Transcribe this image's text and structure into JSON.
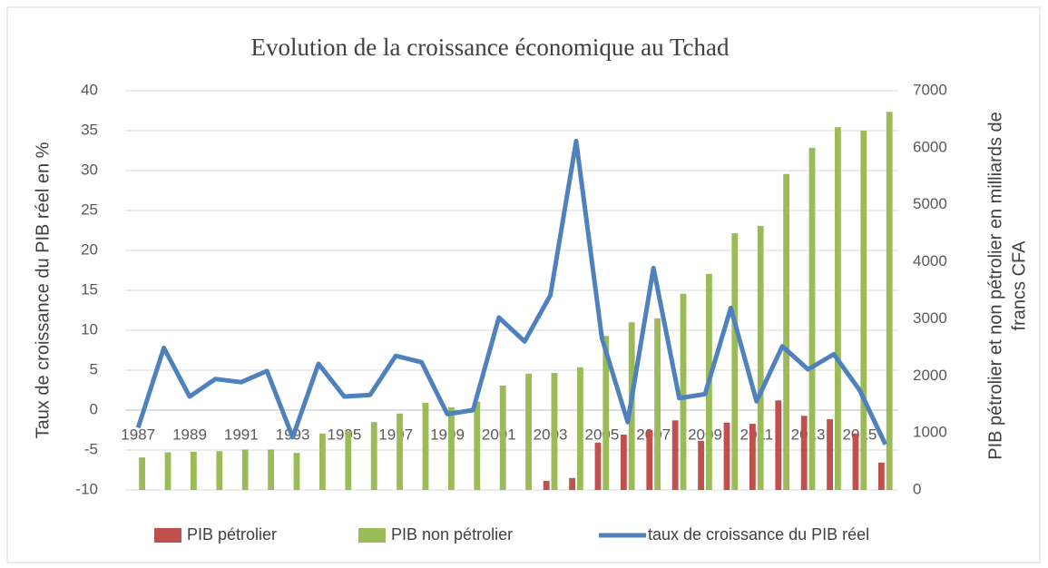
{
  "chart_data": {
    "type": "bar+line",
    "title": "Evolution de la croissance économique au Tchad",
    "ylabel": "Taux de croissance du PIB réel  en %",
    "y2label": [
      "PIB pétrolier et non pétrolier en milliards de",
      "francs CFA"
    ],
    "categories": [
      "1987",
      null,
      "1989",
      null,
      "1991",
      null,
      "1993",
      null,
      "1995",
      null,
      "1997",
      null,
      "1999",
      null,
      "2001",
      null,
      "2003",
      null,
      "2005",
      null,
      "2007",
      null,
      "2009",
      null,
      "2011",
      null,
      "2013",
      null,
      "2015",
      null
    ],
    "ylim": [
      -10,
      40
    ],
    "yticks": [
      -10,
      -5,
      0,
      5,
      10,
      15,
      20,
      25,
      30,
      35,
      40
    ],
    "y2lim": [
      0,
      7000
    ],
    "y2ticks": [
      0,
      1000,
      2000,
      3000,
      4000,
      5000,
      6000,
      7000
    ],
    "grid": true,
    "legend": "bottom",
    "series": [
      {
        "name": "PIB pétrolier",
        "color": "#c0504d",
        "kind": "bar",
        "axis": "y2",
        "values": [
          null,
          null,
          null,
          null,
          null,
          null,
          null,
          null,
          null,
          null,
          null,
          null,
          null,
          null,
          null,
          null,
          160,
          210,
          830,
          970,
          1050,
          1220,
          860,
          1180,
          1160,
          1570,
          1300,
          1240,
          990,
          480
        ]
      },
      {
        "name": "PIB non pétrolier",
        "color": "#9bbb59",
        "kind": "bar",
        "axis": "y2",
        "values": [
          570,
          660,
          670,
          680,
          710,
          710,
          650,
          990,
          1030,
          1190,
          1340,
          1530,
          1450,
          1550,
          1830,
          2040,
          2050,
          2150,
          2700,
          2940,
          3010,
          3440,
          3790,
          4500,
          4630,
          5540,
          6000,
          6360,
          6300,
          6630
        ]
      },
      {
        "name": "taux de croissance du PIB réel",
        "color": "#4f81bd",
        "kind": "line",
        "values": [
          -2.2,
          7.8,
          1.7,
          3.9,
          3.5,
          4.9,
          -3.4,
          5.8,
          1.7,
          1.9,
          6.8,
          6.0,
          -0.5,
          0,
          11.6,
          8.6,
          14.4,
          33.7,
          9.0,
          -1.5,
          17.8,
          1.5,
          2.0,
          12.8,
          1.1,
          8.0,
          5.1,
          7.0,
          2.5,
          -4.3
        ]
      }
    ]
  }
}
